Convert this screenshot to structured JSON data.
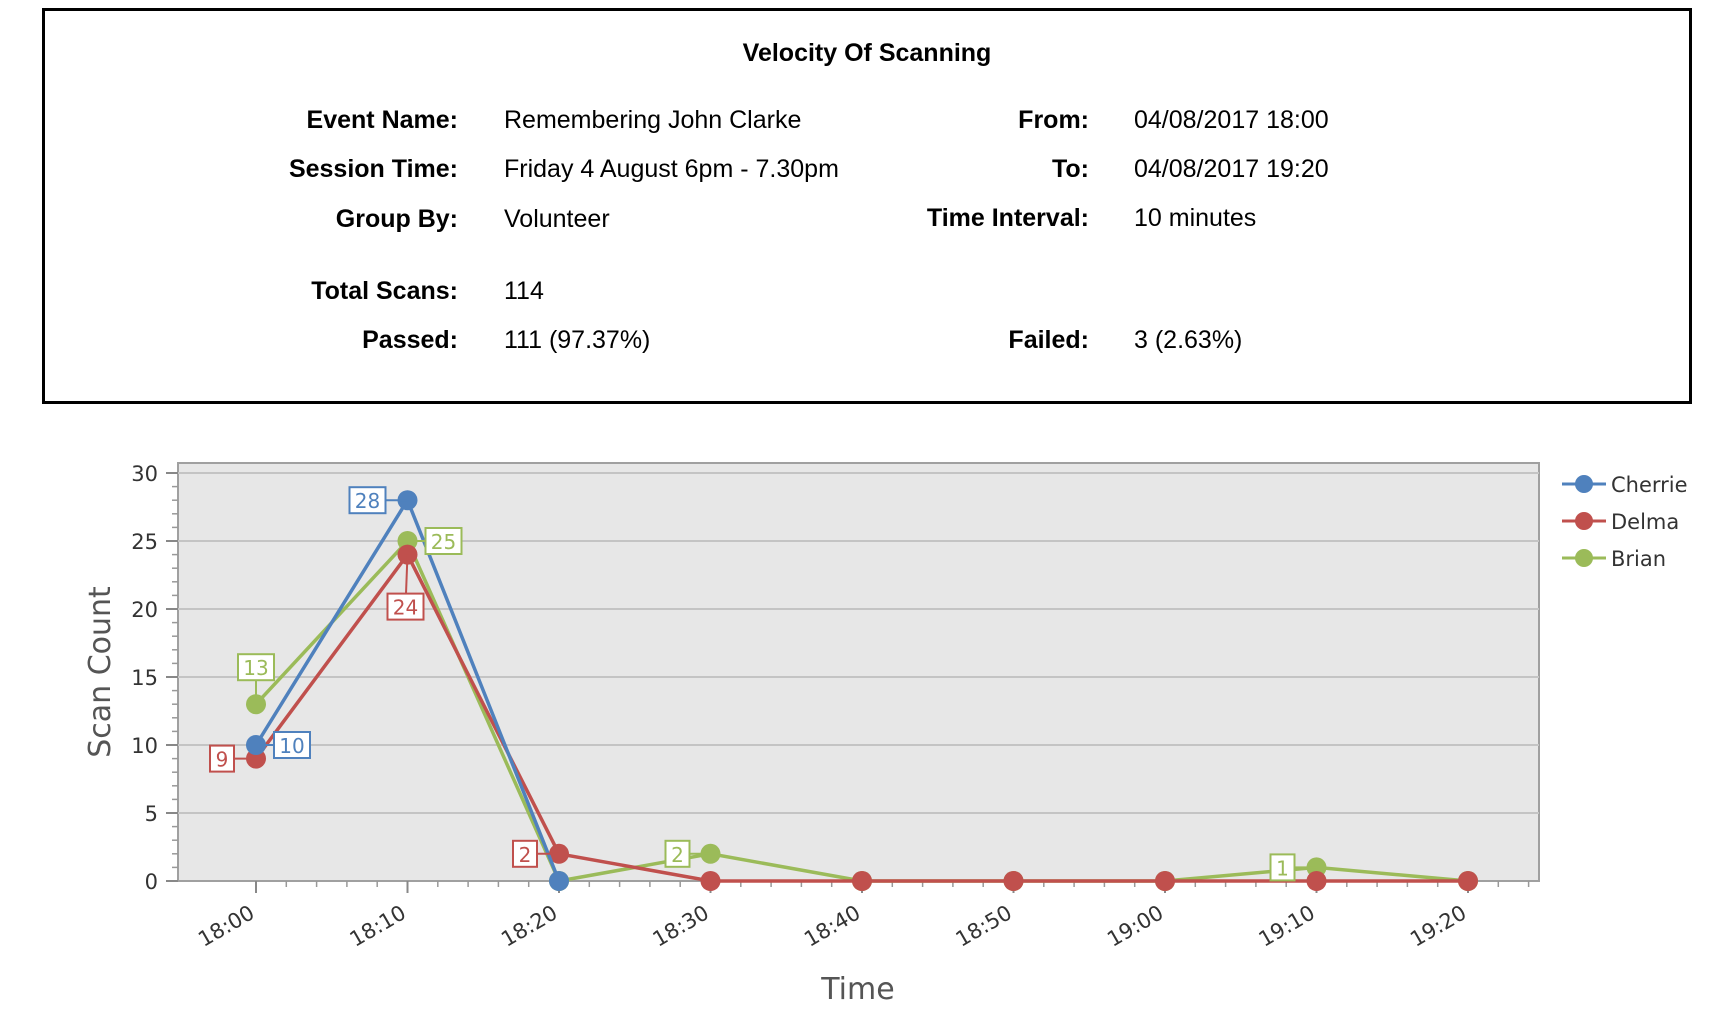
{
  "summary": {
    "title": "Velocity Of Scanning",
    "event_name_label": "Event Name:",
    "event_name": "Remembering John Clarke",
    "session_time_label": "Session Time:",
    "session_time": "Friday 4 August 6pm - 7.30pm",
    "group_by_label": "Group By:",
    "group_by": "Volunteer",
    "total_scans_label": "Total Scans:",
    "total_scans": "114",
    "passed_label": "Passed:",
    "passed": "111 (97.37%)",
    "from_label": "From:",
    "from": "04/08/2017 18:00",
    "to_label": "To:",
    "to": "04/08/2017 19:20",
    "time_interval_label": "Time Interval:",
    "time_interval": "10 minutes",
    "failed_label": "Failed:",
    "failed": "3 (2.63%)"
  },
  "chart_data": {
    "type": "line",
    "title": "",
    "xlabel": "Time",
    "ylabel": "Scan Count",
    "categories": [
      "18:00",
      "18:10",
      "18:20",
      "18:30",
      "18:40",
      "18:50",
      "19:00",
      "19:10",
      "19:20"
    ],
    "ylim": [
      0,
      30
    ],
    "yticks": [
      0,
      5,
      10,
      15,
      20,
      25,
      30
    ],
    "grid": true,
    "legend": "right",
    "series": [
      {
        "name": "Cherrie",
        "color": "#4f81bd",
        "values": [
          10,
          28,
          0,
          null,
          null,
          null,
          null,
          null,
          null
        ],
        "labels": [
          {
            "i": 0,
            "text": "10"
          },
          {
            "i": 1,
            "text": "28"
          }
        ]
      },
      {
        "name": "Delma",
        "color": "#c0504d",
        "values": [
          9,
          24,
          2,
          0,
          0,
          0,
          0,
          0,
          0
        ],
        "labels": [
          {
            "i": 0,
            "text": "9"
          },
          {
            "i": 1,
            "text": "24"
          },
          {
            "i": 2,
            "text": "2"
          }
        ]
      },
      {
        "name": "Brian",
        "color": "#9bbb59",
        "values": [
          13,
          25,
          0,
          2,
          0,
          0,
          0,
          1,
          0
        ],
        "labels": [
          {
            "i": 0,
            "text": "13"
          },
          {
            "i": 1,
            "text": "25"
          },
          {
            "i": 3,
            "text": "2"
          },
          {
            "i": 7,
            "text": "1"
          }
        ]
      }
    ]
  }
}
